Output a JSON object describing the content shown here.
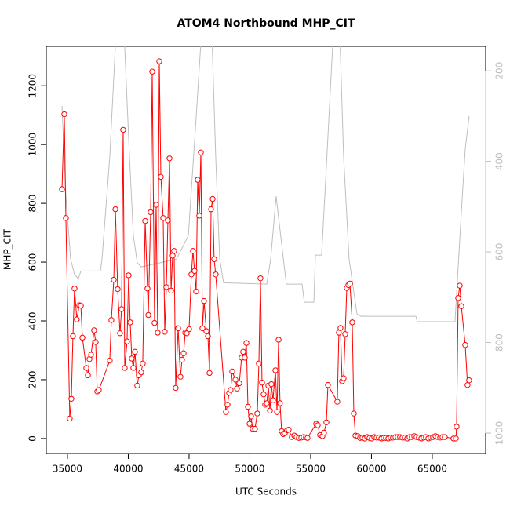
{
  "chart_data": {
    "type": "line",
    "title": "ATOM4 Northbound MHP_CIT",
    "x_label": "UTC Seconds",
    "y_label": "MHP_CIT",
    "xlim": [
      33260,
      69390
    ],
    "ylim": [
      -51,
      1334
    ],
    "y2lim": [
      1045,
      146
    ],
    "xticks": [
      35000,
      40000,
      45000,
      50000,
      55000,
      60000,
      65000
    ],
    "yticks": [
      0,
      200,
      400,
      600,
      800,
      1000,
      1200
    ],
    "y2ticks": [
      200,
      400,
      600,
      800,
      1000
    ],
    "series": [
      {
        "color": "#ff0000",
        "markers": true,
        "x": [
          34550,
          34740,
          34870,
          35190,
          35320,
          35450,
          35580,
          35770,
          35970,
          36100,
          36230,
          36550,
          36680,
          36810,
          36940,
          37190,
          37320,
          37450,
          37580,
          38480,
          38610,
          38810,
          38940,
          39130,
          39320,
          39450,
          39580,
          39710,
          39900,
          40030,
          40160,
          40290,
          40420,
          40550,
          40740,
          40870,
          41060,
          41190,
          41390,
          41580,
          41650,
          41840,
          41970,
          42160,
          42290,
          42420,
          42550,
          42680,
          42870,
          43000,
          43130,
          43260,
          43390,
          43520,
          43650,
          43770,
          43900,
          44100,
          44290,
          44420,
          44550,
          44680,
          44810,
          45000,
          45190,
          45320,
          45450,
          45580,
          45710,
          45840,
          45970,
          46100,
          46230,
          46420,
          46550,
          46680,
          46810,
          46940,
          47060,
          47190,
          48030,
          48160,
          48290,
          48420,
          48550,
          48810,
          48940,
          49130,
          49320,
          49450,
          49580,
          49710,
          49840,
          49970,
          50100,
          50230,
          50420,
          50610,
          50740,
          50870,
          51000,
          51130,
          51260,
          51390,
          51520,
          51650,
          51770,
          51900,
          52100,
          52230,
          52360,
          52480,
          52610,
          52740,
          52870,
          53060,
          53190,
          53450,
          53650,
          53840,
          54030,
          54230,
          54420,
          54610,
          54740,
          55450,
          55580,
          55770,
          55970,
          56100,
          56290,
          56420,
          57190,
          57320,
          57450,
          57580,
          57710,
          57840,
          57970,
          58100,
          58230,
          58420,
          58550,
          58680,
          58870,
          59060,
          59260,
          59450,
          59650,
          59840,
          60030,
          60230,
          60420,
          60610,
          60810,
          61000,
          61190,
          61390,
          61580,
          61770,
          61970,
          62160,
          62350,
          62550,
          62740,
          62940,
          63130,
          63320,
          63520,
          63710,
          63900,
          64100,
          64290,
          64480,
          64680,
          64870,
          65060,
          65260,
          65450,
          65650,
          65840,
          66030,
          66740,
          66940,
          67000,
          67130,
          67260,
          67390,
          67710,
          67900,
          68030
        ],
        "values": [
          848,
          1103,
          750,
          68,
          135,
          348,
          510,
          405,
          453,
          452,
          343,
          240,
          215,
          270,
          285,
          368,
          328,
          160,
          165,
          265,
          403,
          540,
          780,
          508,
          358,
          440,
          1050,
          240,
          330,
          555,
          395,
          272,
          240,
          295,
          180,
          215,
          225,
          255,
          740,
          510,
          420,
          770,
          1248,
          393,
          795,
          360,
          1283,
          890,
          750,
          363,
          515,
          742,
          953,
          503,
          622,
          638,
          172,
          375,
          210,
          268,
          290,
          360,
          358,
          372,
          558,
          638,
          570,
          500,
          880,
          758,
          973,
          375,
          468,
          365,
          348,
          223,
          780,
          815,
          610,
          558,
          90,
          115,
          155,
          165,
          228,
          200,
          170,
          188,
          275,
          295,
          275,
          325,
          108,
          50,
          75,
          33,
          33,
          85,
          255,
          545,
          190,
          150,
          115,
          120,
          180,
          95,
          185,
          130,
          232,
          90,
          336,
          120,
          25,
          15,
          18,
          28,
          30,
          5,
          10,
          5,
          2,
          3,
          5,
          4,
          2,
          50,
          45,
          12,
          8,
          20,
          55,
          182,
          125,
          360,
          376,
          195,
          205,
          355,
          512,
          522,
          527,
          395,
          85,
          10,
          8,
          2,
          3,
          0,
          5,
          2,
          0,
          5,
          3,
          3,
          0,
          2,
          2,
          0,
          3,
          3,
          5,
          5,
          5,
          3,
          3,
          0,
          5,
          5,
          8,
          5,
          3,
          0,
          3,
          5,
          0,
          3,
          5,
          8,
          5,
          3,
          5,
          5,
          0,
          0,
          40,
          478,
          520,
          450,
          318,
          182,
          198
        ]
      },
      {
        "color": "#bebebe",
        "axis": "y2",
        "x": [
          34550,
          34870,
          35260,
          35580,
          35900,
          36100,
          37710,
          37840,
          38480,
          39000,
          39650,
          40100,
          40420,
          40740,
          41060,
          43970,
          44940,
          45580,
          46030,
          46870,
          47190,
          47520,
          47840,
          51390,
          51710,
          52160,
          52680,
          53000,
          54290,
          54480,
          55260,
          55390,
          55900,
          56230,
          56870,
          57390,
          57710,
          58160,
          58810,
          59130,
          63650,
          63770,
          66870,
          67390,
          67710,
          68030
        ],
        "values": [
          278,
          477,
          616,
          650,
          659,
          642,
          642,
          616,
          390,
          113,
          113,
          390,
          564,
          624,
          633,
          616,
          564,
          304,
          113,
          113,
          390,
          616,
          668,
          671,
          616,
          477,
          598,
          671,
          671,
          711,
          711,
          607,
          607,
          442,
          113,
          113,
          390,
          616,
          737,
          742,
          742,
          754,
          754,
          512,
          373,
          300
        ]
      }
    ]
  }
}
